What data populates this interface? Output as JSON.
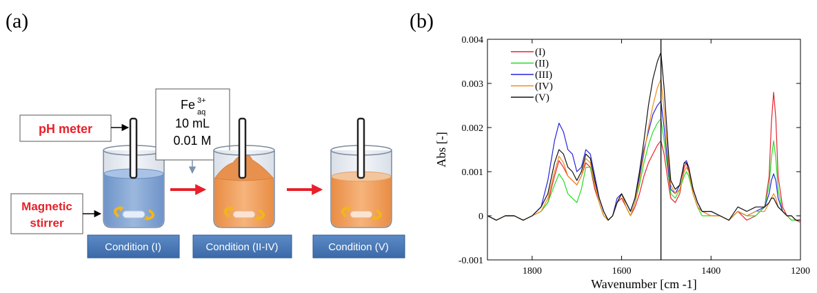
{
  "panel_a": {
    "label": "(a)",
    "ph_meter_label": "pH meter",
    "stirrer_label_line1": "Magnetic",
    "stirrer_label_line2": "stirrer",
    "reagent_box": {
      "species": "Fe",
      "superscript": "3+",
      "subscript": "aq",
      "volume": "10 mL",
      "concentration": "0.01 M"
    },
    "conditions": [
      "Condition (I)",
      "Condition (II-IV)",
      "Condition (V)"
    ],
    "colors": {
      "label_red": "#e8202a",
      "arrow_red": "#e8202a",
      "water_blue": "#7fa3d3",
      "orange_liquid": "#f0a566",
      "condition_box": "#4f81bd",
      "stir_arrow": "#f2b619"
    }
  },
  "panel_b": {
    "label": "(b)",
    "chart_data": {
      "type": "line",
      "title": "",
      "xlabel": "Wavenumber [cm -1]",
      "ylabel": "Abs [-]",
      "xlim": [
        1900,
        1200
      ],
      "ylim": [
        -0.001,
        0.004
      ],
      "x_ticks": [
        1800,
        1600,
        1400,
        1200
      ],
      "y_ticks": [
        -0.001,
        0,
        0.001,
        0.002,
        0.003,
        0.004
      ],
      "x_tick_labels": [
        "1800",
        "1600",
        "1400",
        "1200"
      ],
      "y_tick_labels": [
        "-0.001",
        "0",
        "0.001",
        "0.002",
        "0.003",
        "0.004"
      ],
      "grid": false,
      "legend_position": "top-left",
      "vertical_marker_x": 1512,
      "series": [
        {
          "name": "(I)",
          "color": "#e8202a",
          "x": [
            1900,
            1880,
            1860,
            1840,
            1820,
            1800,
            1780,
            1765,
            1750,
            1740,
            1730,
            1720,
            1710,
            1700,
            1690,
            1680,
            1670,
            1660,
            1650,
            1640,
            1630,
            1620,
            1610,
            1600,
            1590,
            1580,
            1570,
            1560,
            1550,
            1540,
            1530,
            1520,
            1512,
            1505,
            1495,
            1490,
            1480,
            1470,
            1460,
            1455,
            1450,
            1440,
            1430,
            1420,
            1400,
            1380,
            1360,
            1340,
            1320,
            1300,
            1280,
            1270,
            1265,
            1260,
            1255,
            1250,
            1240,
            1230,
            1220,
            1210,
            1200
          ],
          "y": [
            0.0,
            -0.0001,
            0.0,
            0.0,
            -0.0001,
            0.0,
            0.0001,
            0.0003,
            0.0009,
            0.00125,
            0.0011,
            0.0009,
            0.0008,
            0.0007,
            0.0009,
            0.0012,
            0.0011,
            0.0006,
            0.0003,
            0.0,
            -0.0001,
            0.0,
            0.0003,
            0.0004,
            0.0002,
            0.0,
            0.0002,
            0.0005,
            0.0009,
            0.0012,
            0.0014,
            0.0016,
            0.0017,
            0.0014,
            0.0007,
            0.0004,
            0.0003,
            0.0005,
            0.0011,
            0.0012,
            0.001,
            0.0005,
            0.0002,
            0.0001,
            0.0,
            0.0,
            -0.0001,
            0.0001,
            -0.0001,
            0.0,
            0.0002,
            0.0009,
            0.0021,
            0.0028,
            0.0022,
            0.0009,
            0.0002,
            0.0,
            -0.0001,
            -0.0001,
            -0.00015
          ]
        },
        {
          "name": "(II)",
          "color": "#22dd22",
          "x": [
            1900,
            1880,
            1860,
            1840,
            1820,
            1800,
            1780,
            1765,
            1750,
            1740,
            1730,
            1720,
            1710,
            1700,
            1690,
            1680,
            1670,
            1660,
            1650,
            1640,
            1630,
            1620,
            1610,
            1600,
            1590,
            1580,
            1570,
            1560,
            1550,
            1540,
            1530,
            1520,
            1512,
            1505,
            1495,
            1490,
            1480,
            1470,
            1460,
            1455,
            1450,
            1440,
            1430,
            1420,
            1400,
            1380,
            1360,
            1340,
            1320,
            1300,
            1280,
            1270,
            1265,
            1260,
            1255,
            1250,
            1240,
            1230,
            1220,
            1210,
            1200
          ],
          "y": [
            0.0,
            -0.0001,
            0.0,
            0.0,
            -0.0001,
            0.0,
            0.0001,
            0.0003,
            0.0007,
            0.00095,
            0.0008,
            0.0005,
            0.0004,
            0.0003,
            0.0006,
            0.0011,
            0.0011,
            0.0007,
            0.0003,
            0.0,
            -0.0001,
            0.0,
            0.0003,
            0.0005,
            0.0002,
            0.0,
            0.0003,
            0.0007,
            0.0012,
            0.0016,
            0.0019,
            0.0021,
            0.0022,
            0.0017,
            0.0009,
            0.0005,
            0.0004,
            0.0006,
            0.0009,
            0.001,
            0.0009,
            0.0005,
            0.0002,
            0.0,
            0.0,
            0.0,
            -0.0001,
            0.0001,
            0.0,
            0.0,
            0.0002,
            0.0007,
            0.0013,
            0.0017,
            0.0013,
            0.0006,
            0.0001,
            0.0,
            -0.0001,
            -0.0001,
            -0.0001
          ]
        },
        {
          "name": "(III)",
          "color": "#2222dd",
          "x": [
            1900,
            1880,
            1860,
            1840,
            1820,
            1800,
            1780,
            1765,
            1750,
            1740,
            1730,
            1720,
            1710,
            1700,
            1690,
            1680,
            1670,
            1660,
            1650,
            1640,
            1630,
            1620,
            1610,
            1600,
            1590,
            1580,
            1570,
            1560,
            1550,
            1540,
            1530,
            1520,
            1512,
            1505,
            1495,
            1490,
            1480,
            1470,
            1460,
            1455,
            1450,
            1440,
            1430,
            1420,
            1400,
            1380,
            1360,
            1340,
            1320,
            1300,
            1280,
            1270,
            1265,
            1260,
            1255,
            1250,
            1240,
            1230,
            1220,
            1210,
            1200
          ],
          "y": [
            0.0,
            -0.0001,
            0.0,
            0.0,
            -0.0001,
            0.0,
            0.0002,
            0.0008,
            0.0017,
            0.0021,
            0.0019,
            0.0015,
            0.0014,
            0.001,
            0.0011,
            0.0015,
            0.0014,
            0.0009,
            0.0004,
            0.0001,
            -0.0001,
            0.0,
            0.0004,
            0.0005,
            0.0003,
            0.0001,
            0.0004,
            0.0009,
            0.0015,
            0.0019,
            0.0023,
            0.0025,
            0.0026,
            0.002,
            0.001,
            0.0006,
            0.0005,
            0.0007,
            0.0012,
            0.00125,
            0.0011,
            0.0006,
            0.0003,
            0.0001,
            0.0001,
            0.0,
            -0.0001,
            0.0001,
            0.0,
            0.0001,
            0.0002,
            0.0005,
            0.0008,
            0.00095,
            0.0008,
            0.0004,
            0.0001,
            0.0,
            0.0,
            -0.0001,
            -0.0001
          ]
        },
        {
          "name": "(IV)",
          "color": "#f08a1c",
          "x": [
            1900,
            1880,
            1860,
            1840,
            1820,
            1800,
            1780,
            1765,
            1750,
            1740,
            1730,
            1720,
            1710,
            1700,
            1690,
            1680,
            1670,
            1660,
            1650,
            1640,
            1630,
            1620,
            1610,
            1600,
            1590,
            1580,
            1570,
            1560,
            1550,
            1540,
            1530,
            1520,
            1512,
            1505,
            1495,
            1490,
            1480,
            1470,
            1460,
            1455,
            1450,
            1440,
            1430,
            1420,
            1400,
            1380,
            1360,
            1340,
            1320,
            1300,
            1280,
            1270,
            1265,
            1260,
            1255,
            1250,
            1240,
            1230,
            1220,
            1210,
            1200
          ],
          "y": [
            0.0,
            -0.0001,
            0.0,
            0.0,
            -0.0001,
            0.0,
            0.0001,
            0.0004,
            0.001,
            0.00135,
            0.0012,
            0.0009,
            0.0008,
            0.0007,
            0.0009,
            0.0013,
            0.0012,
            0.0007,
            0.0003,
            0.0,
            -0.0001,
            0.0,
            0.0003,
            0.0005,
            0.0002,
            0.0,
            0.0003,
            0.0008,
            0.0014,
            0.002,
            0.0025,
            0.0029,
            0.0031,
            0.0024,
            0.0012,
            0.0007,
            0.0005,
            0.0006,
            0.001,
            0.0011,
            0.001,
            0.0005,
            0.0002,
            0.0001,
            0.0,
            0.0,
            -0.0001,
            0.0001,
            0.0,
            0.0001,
            0.0001,
            0.0003,
            0.0004,
            0.0005,
            0.0004,
            0.0002,
            0.0001,
            0.0,
            0.0,
            -0.0001,
            -0.0001
          ]
        },
        {
          "name": "(V)",
          "color": "#111111",
          "x": [
            1900,
            1880,
            1860,
            1840,
            1820,
            1800,
            1780,
            1765,
            1750,
            1740,
            1730,
            1720,
            1710,
            1700,
            1690,
            1680,
            1670,
            1660,
            1650,
            1640,
            1630,
            1620,
            1610,
            1600,
            1590,
            1580,
            1570,
            1560,
            1550,
            1540,
            1530,
            1520,
            1512,
            1505,
            1495,
            1490,
            1480,
            1470,
            1460,
            1455,
            1450,
            1440,
            1430,
            1420,
            1400,
            1380,
            1360,
            1340,
            1320,
            1300,
            1280,
            1270,
            1265,
            1260,
            1255,
            1250,
            1240,
            1230,
            1220,
            1210,
            1200
          ],
          "y": [
            0.0,
            -0.0001,
            0.0,
            0.0,
            -0.0001,
            0.0,
            0.0002,
            0.0005,
            0.0012,
            0.0015,
            0.0014,
            0.0011,
            0.001,
            0.0008,
            0.001,
            0.0014,
            0.0013,
            0.0008,
            0.0004,
            0.0001,
            -0.0001,
            0.0,
            0.0003,
            0.0005,
            0.0003,
            0.0001,
            0.0004,
            0.001,
            0.0017,
            0.0025,
            0.0031,
            0.0035,
            0.0037,
            0.0029,
            0.0014,
            0.0008,
            0.0006,
            0.0007,
            0.0012,
            0.0012,
            0.0011,
            0.0006,
            0.0003,
            0.0001,
            0.0001,
            0.0,
            -0.0001,
            0.0002,
            0.0001,
            0.0002,
            0.0002,
            0.0003,
            0.0004,
            0.0004,
            0.0003,
            0.0002,
            0.0001,
            0.0,
            0.0,
            -0.0001,
            -0.0001
          ]
        }
      ]
    }
  }
}
